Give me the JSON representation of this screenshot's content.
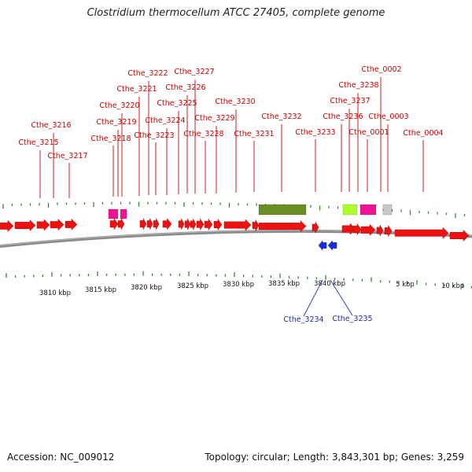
{
  "title": "Clostridium thermocellum ATCC 27405, complete genome",
  "accession": "Accession: NC_009012",
  "summary": "Topology: circular; Length: 3,843,301 bp; Genes: 3,259",
  "colors": {
    "forward_gene": "#ee1111",
    "reverse_gene": "#1a2edd",
    "forward_label": "#cc0000",
    "reverse_label": "#1a2eaa",
    "tick": "#2e8b2e",
    "backbone": "#8a8a8a",
    "olive_feature": "#6b8e23",
    "magenta_feature": "#ee1493",
    "lime_feature": "#adff2f",
    "gray_feature": "#c8c8c8"
  },
  "scale_labels": [
    "3810 kbp",
    "3815 kbp",
    "3820 kbp",
    "3825 kbp",
    "3830 kbp",
    "3835 kbp",
    "3840 kbp",
    "5 kbp",
    "10 kbp"
  ],
  "forward_gene_labels": [
    "Cthe_3215",
    "Cthe_3216",
    "Cthe_3217",
    "Cthe_3218",
    "Cthe_3219",
    "Cthe_3220",
    "Cthe_3221",
    "Cthe_3222",
    "Cthe_3223",
    "Cthe_3224",
    "Cthe_3225",
    "Cthe_3226",
    "Cthe_3227",
    "Cthe_3228",
    "Cthe_3229",
    "Cthe_3230",
    "Cthe_3231",
    "Cthe_3232",
    "Cthe_3233",
    "Cthe_3236",
    "Cthe_3237",
    "Cthe_3238",
    "Cthe_0001",
    "Cthe_0002",
    "Cthe_0003",
    "Cthe_0004"
  ],
  "reverse_gene_labels": [
    "Cthe_3234",
    "Cthe_3235"
  ]
}
